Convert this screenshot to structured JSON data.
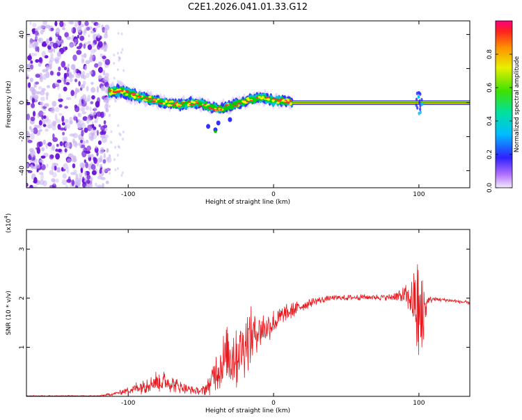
{
  "title": "C2E1.2026.041.01.33.G12",
  "colors": {
    "snr_line": "#e8191e",
    "spec_dot": "#6a14d8",
    "spec_faint": "#c9b3f2",
    "axis": "#000000",
    "track": [
      "#2a2aff",
      "#00c8c8",
      "#00d000",
      "#ffff00",
      "#ff3030"
    ]
  },
  "chart_data": [
    {
      "type": "heatmap",
      "name": "spectrogram",
      "xlabel": "Height of straight line (km)",
      "ylabel": "Frequency (Hz)",
      "xlim": [
        -170,
        135
      ],
      "ylim": [
        -50,
        48
      ],
      "xticks": [
        -100,
        0,
        100
      ],
      "xtick_labels": [
        "-100",
        "0",
        "100"
      ],
      "yticks": [
        -40,
        -20,
        0,
        20,
        40
      ],
      "ytick_labels": [
        "-40",
        "-20",
        "0",
        "20",
        "40"
      ],
      "noise_region": {
        "x": [
          -170,
          -113
        ],
        "y": [
          -50,
          48
        ]
      },
      "track": {
        "x": [
          -113,
          -105,
          -95,
          -85,
          -75,
          -65,
          -55,
          -45,
          -38,
          -30,
          -22,
          -15,
          -8,
          0,
          8,
          13,
          50,
          95,
          100,
          105,
          135
        ],
        "y": [
          6,
          7,
          4,
          2,
          0,
          -1,
          0,
          -2,
          -4,
          -2,
          0,
          2,
          3,
          1,
          1,
          0,
          0,
          0,
          2,
          0,
          0
        ]
      },
      "colorbar": {
        "label": "Normalized spectral amplitude",
        "ticks": [
          0.0,
          0.2,
          0.4,
          0.6,
          0.8
        ],
        "tick_labels": [
          "0.0",
          "0.2",
          "0.4",
          "0.6",
          "0.8"
        ],
        "range": [
          0,
          1
        ]
      }
    },
    {
      "type": "line",
      "name": "snr",
      "xlabel": "Height of straight line (km)",
      "ylabel": "SNR (10 * v/v)",
      "scale_label": "(x10",
      "scale_exp": "4",
      "scale_close": ")",
      "xlim": [
        -170,
        135
      ],
      "ylim": [
        0,
        3.4
      ],
      "xticks": [
        -100,
        0,
        100
      ],
      "xtick_labels": [
        "-100",
        "0",
        "100"
      ],
      "yticks": [
        1,
        2,
        3
      ],
      "ytick_labels": [
        "1",
        "2",
        "3"
      ],
      "envelope": {
        "x": [
          -170,
          -120,
          -110,
          -100,
          -90,
          -85,
          -80,
          -75,
          -70,
          -65,
          -60,
          -55,
          -50,
          -45,
          -40,
          -35,
          -30,
          -25,
          -20,
          -15,
          -10,
          -5,
          0,
          10,
          20,
          30,
          40,
          60,
          80,
          90,
          95,
          98,
          100,
          102,
          104,
          106,
          110,
          120,
          135
        ],
        "base": [
          0.01,
          0.01,
          0.05,
          0.12,
          0.22,
          0.28,
          0.3,
          0.3,
          0.26,
          0.2,
          0.15,
          0.12,
          0.1,
          0.2,
          0.5,
          0.7,
          0.85,
          0.9,
          1.05,
          1.25,
          1.35,
          1.4,
          1.5,
          1.7,
          1.85,
          1.95,
          2.0,
          2.02,
          2.02,
          2.05,
          2.0,
          1.8,
          1.5,
          1.5,
          1.8,
          1.95,
          1.98,
          1.96,
          1.9
        ],
        "amp": [
          0.01,
          0.01,
          0.03,
          0.08,
          0.18,
          0.22,
          0.25,
          0.22,
          0.18,
          0.14,
          0.1,
          0.08,
          0.08,
          0.2,
          0.4,
          0.6,
          0.7,
          0.8,
          0.7,
          0.6,
          0.45,
          0.35,
          0.3,
          0.2,
          0.12,
          0.08,
          0.06,
          0.06,
          0.07,
          0.2,
          0.4,
          0.9,
          1.6,
          1.6,
          0.5,
          0.1,
          0.05,
          0.04,
          0.04
        ]
      }
    }
  ]
}
